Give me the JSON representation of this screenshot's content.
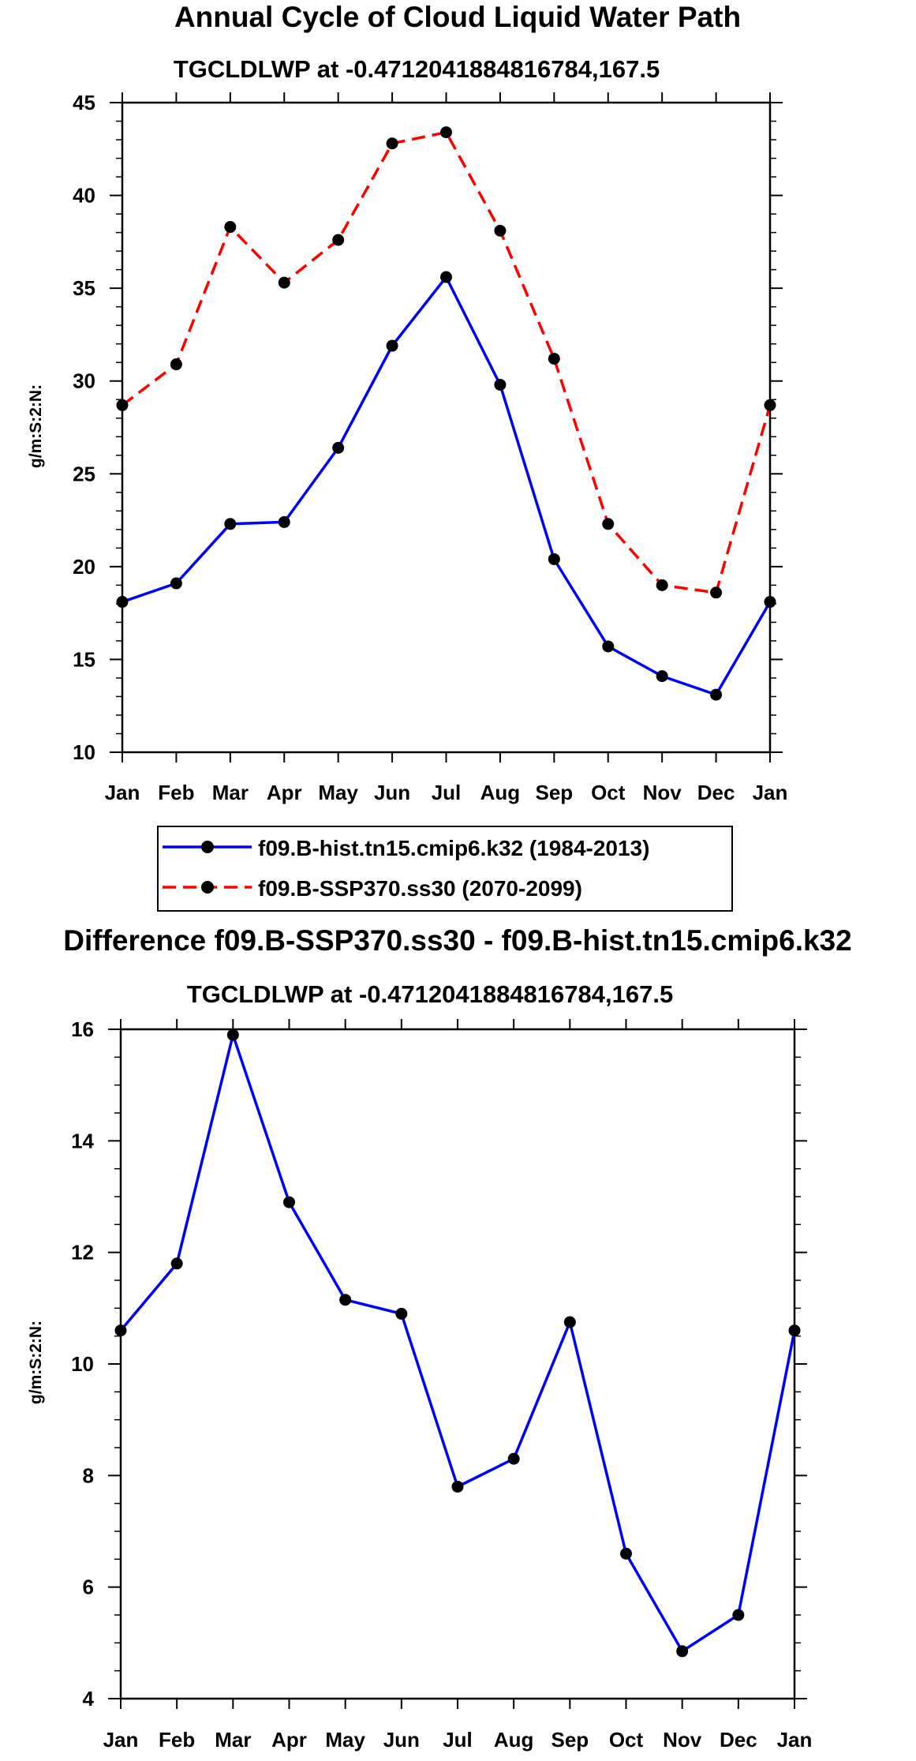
{
  "chart_data": [
    {
      "type": "line",
      "title": "Annual Cycle of Cloud Liquid Water Path",
      "subtitle": "TGCLDLWP at -0.4712041884816784,167.5",
      "xlabel": "",
      "ylabel": "g/m:S:2:N:",
      "categories": [
        "Jan",
        "Feb",
        "Mar",
        "Apr",
        "May",
        "Jun",
        "Jul",
        "Aug",
        "Sep",
        "Oct",
        "Nov",
        "Dec",
        "Jan"
      ],
      "ylim": [
        10,
        45
      ],
      "yticks": [
        10,
        15,
        20,
        25,
        30,
        35,
        40,
        45
      ],
      "series": [
        {
          "name": "f09.B-hist.tn15.cmip6.k32 (1984-2013)",
          "color": "#0000ff",
          "dash": "solid",
          "values": [
            18.1,
            19.1,
            22.3,
            22.4,
            26.4,
            31.9,
            35.6,
            29.8,
            20.4,
            15.7,
            14.1,
            13.1,
            18.1
          ]
        },
        {
          "name": "f09.B-SSP370.ss30 (2070-2099)",
          "color": "#ff0000",
          "dash": "dashed",
          "values": [
            28.7,
            30.9,
            38.3,
            35.3,
            37.6,
            42.8,
            43.4,
            38.1,
            31.2,
            22.3,
            19.0,
            18.6,
            28.7
          ]
        }
      ],
      "legend": {
        "placement": "below",
        "entries": [
          "f09.B-hist.tn15.cmip6.k32 (1984-2013)",
          "f09.B-SSP370.ss30 (2070-2099)"
        ]
      }
    },
    {
      "type": "line",
      "title": "Difference f09.B-SSP370.ss30 - f09.B-hist.tn15.cmip6.k32",
      "subtitle": "TGCLDLWP at -0.4712041884816784,167.5",
      "xlabel": "",
      "ylabel": "g/m:S:2:N:",
      "categories": [
        "Jan",
        "Feb",
        "Mar",
        "Apr",
        "May",
        "Jun",
        "Jul",
        "Aug",
        "Sep",
        "Oct",
        "Nov",
        "Dec",
        "Jan"
      ],
      "ylim": [
        4,
        16
      ],
      "yticks": [
        4,
        6,
        8,
        10,
        12,
        14,
        16
      ],
      "series": [
        {
          "name": "difference",
          "color": "#0000ff",
          "dash": "solid",
          "values": [
            10.6,
            11.8,
            15.9,
            12.9,
            11.15,
            10.9,
            7.8,
            8.3,
            10.75,
            6.6,
            4.85,
            5.5,
            10.6
          ]
        }
      ]
    }
  ]
}
